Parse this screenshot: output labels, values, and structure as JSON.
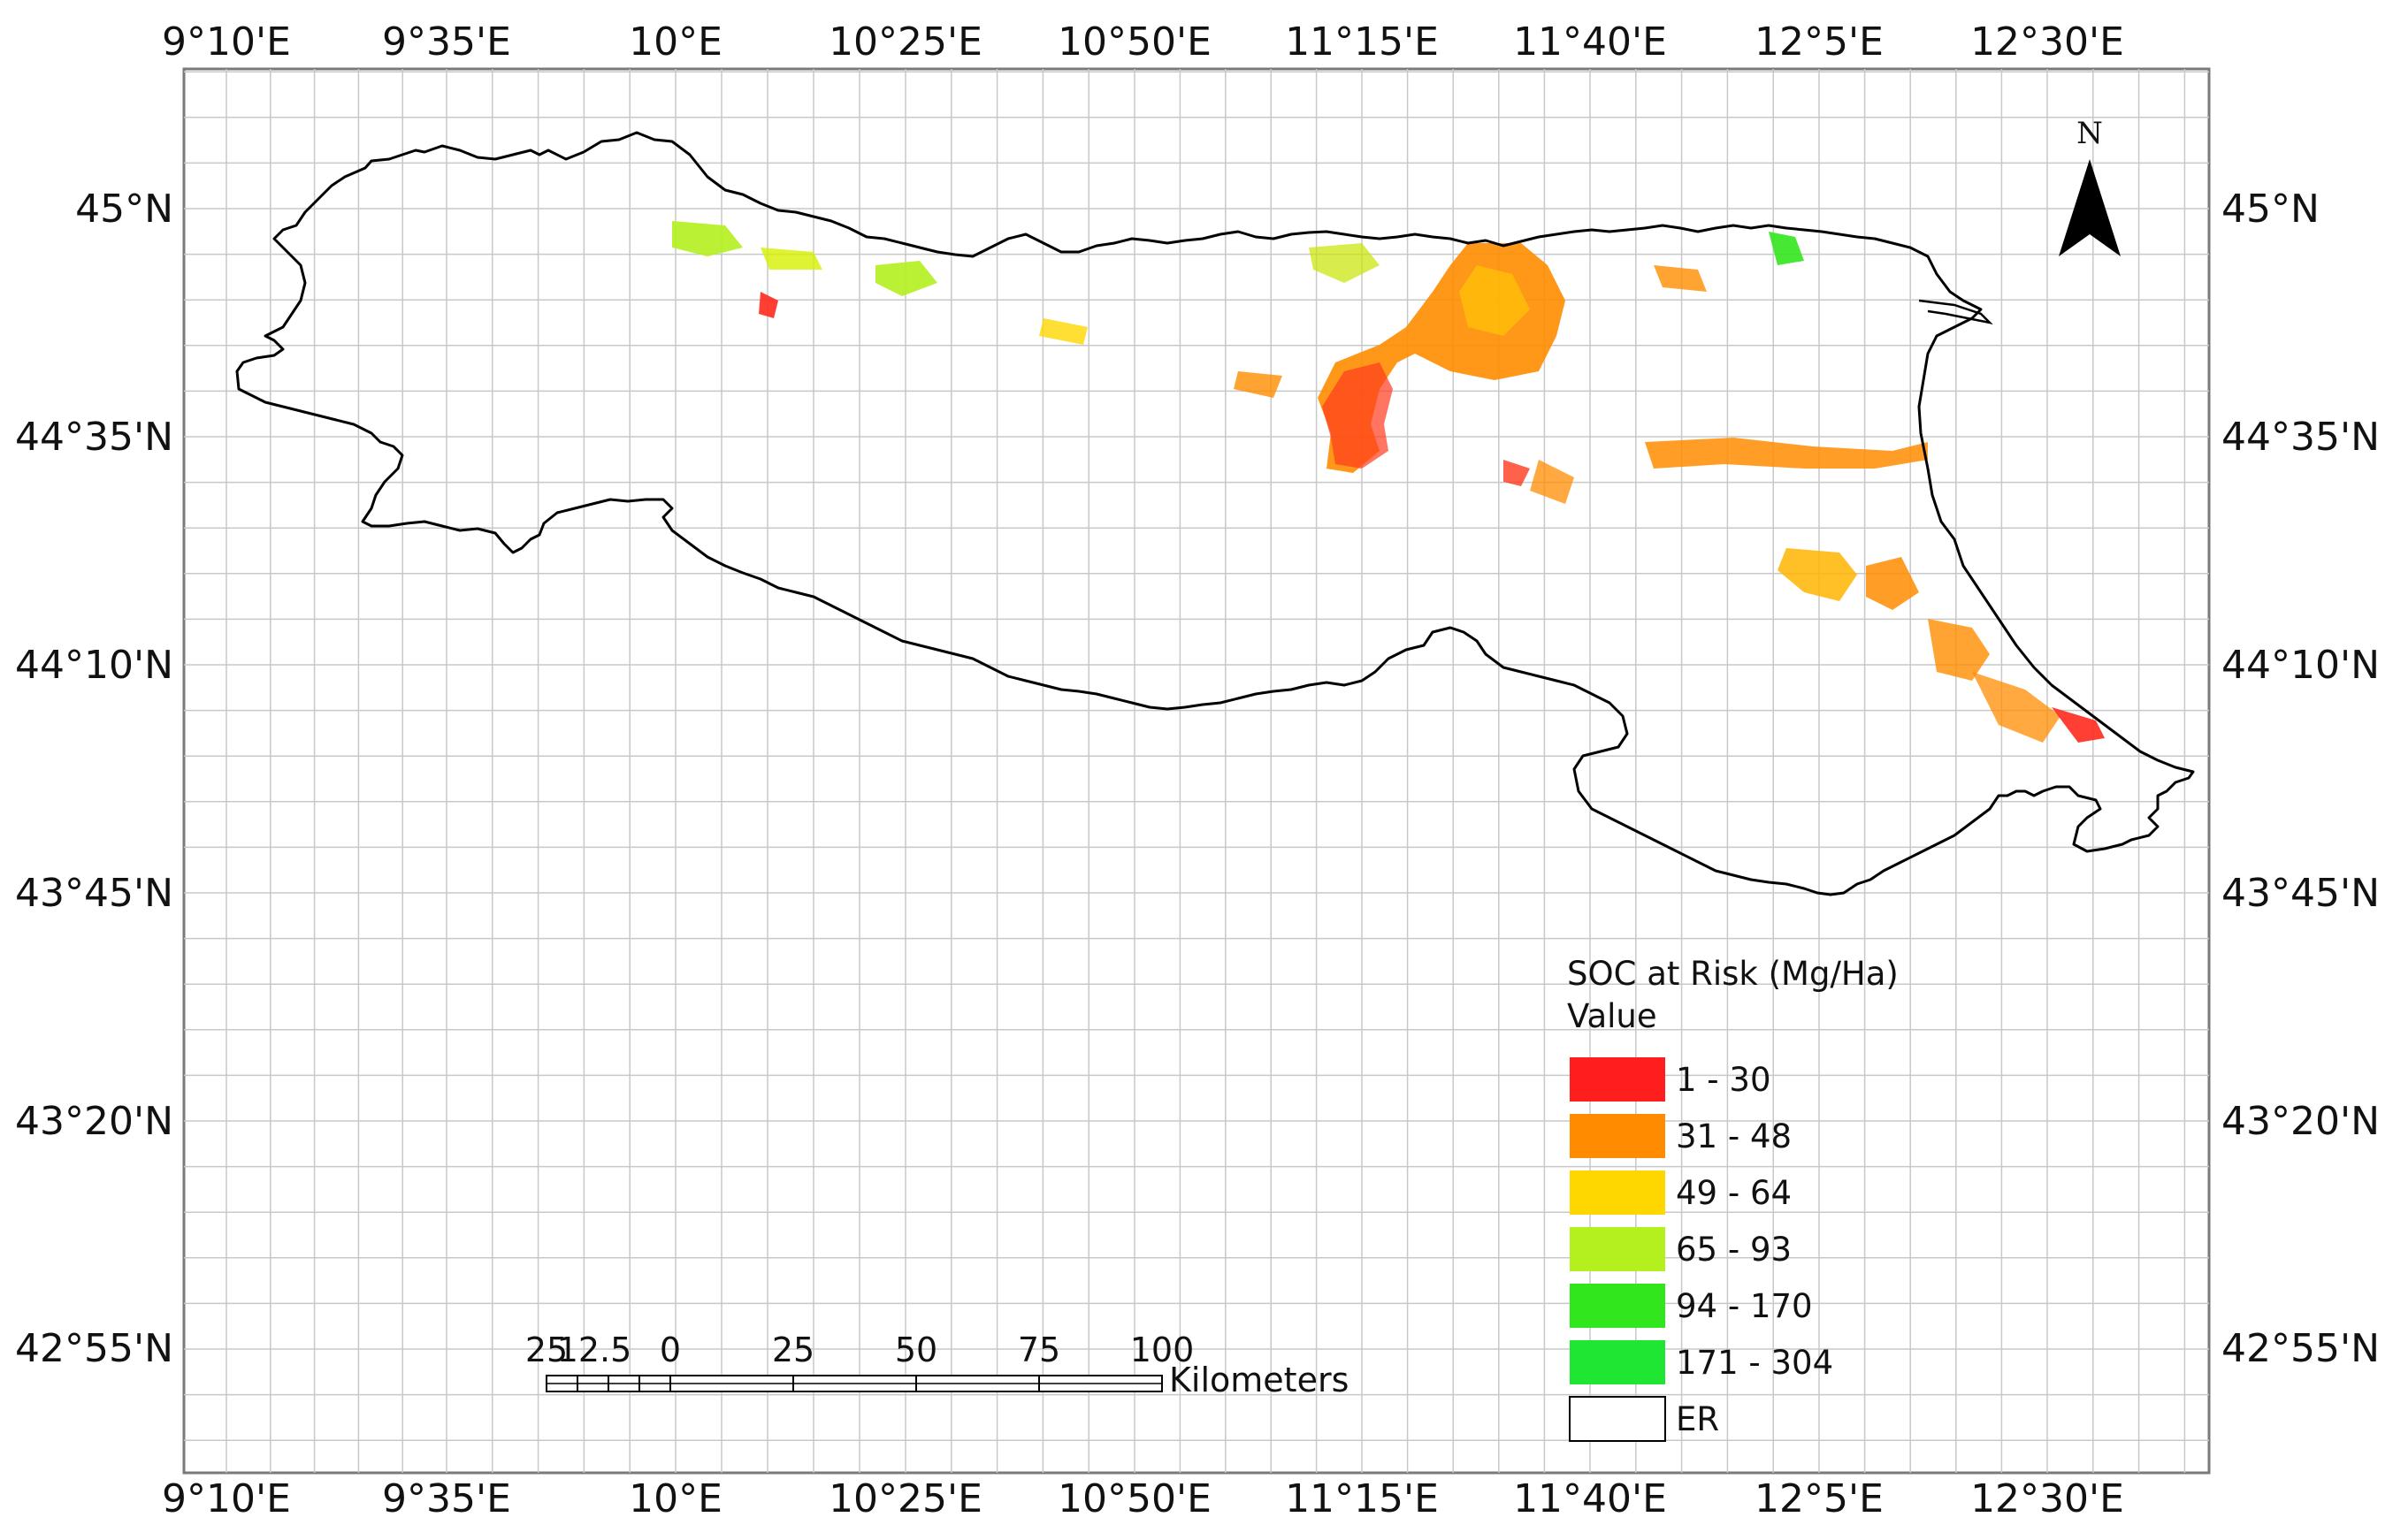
{
  "map": {
    "top_longitudes": [
      "9°10'E",
      "9°35'E",
      "10°E",
      "10°25'E",
      "10°50'E",
      "11°15'E",
      "11°40'E",
      "12°5'E",
      "12°30'E"
    ],
    "bottom_longitudes": [
      "9°10'E",
      "9°35'E",
      "10°E",
      "10°25'E",
      "10°50'E",
      "11°15'E",
      "11°40'E",
      "12°5'E",
      "12°30'E"
    ],
    "left_latitudes": [
      "45°N",
      "44°35'N",
      "44°10'N",
      "43°45'N",
      "43°20'N",
      "42°55'N"
    ],
    "right_latitudes": [
      "45°N",
      "44°35'N",
      "44°10'N",
      "43°45'N",
      "43°20'N",
      "42°55'N"
    ],
    "north_label": "N",
    "grid": true,
    "colors": {
      "frame": "#7a7a7a",
      "grid": "#c8c8c8",
      "boundary": "#000000"
    }
  },
  "legend": {
    "title": "SOC at Risk (Mg/Ha)",
    "subtitle": "Value",
    "items": [
      {
        "label": "1 - 30",
        "color": "#ff1e1e"
      },
      {
        "label": "31 - 48",
        "color": "#ff8c00"
      },
      {
        "label": "49 - 64",
        "color": "#ffd700"
      },
      {
        "label": "65 - 93",
        "color": "#b4f01e"
      },
      {
        "label": "94 - 170",
        "color": "#32e61e"
      },
      {
        "label": "171 - 304",
        "color": "#1ee632"
      },
      {
        "label": "ER",
        "color": "#ffffff"
      }
    ]
  },
  "scale_bar": {
    "labels": [
      "25",
      "12.5",
      "0",
      "25",
      "50",
      "75",
      "100"
    ],
    "unit": "Kilometers"
  }
}
